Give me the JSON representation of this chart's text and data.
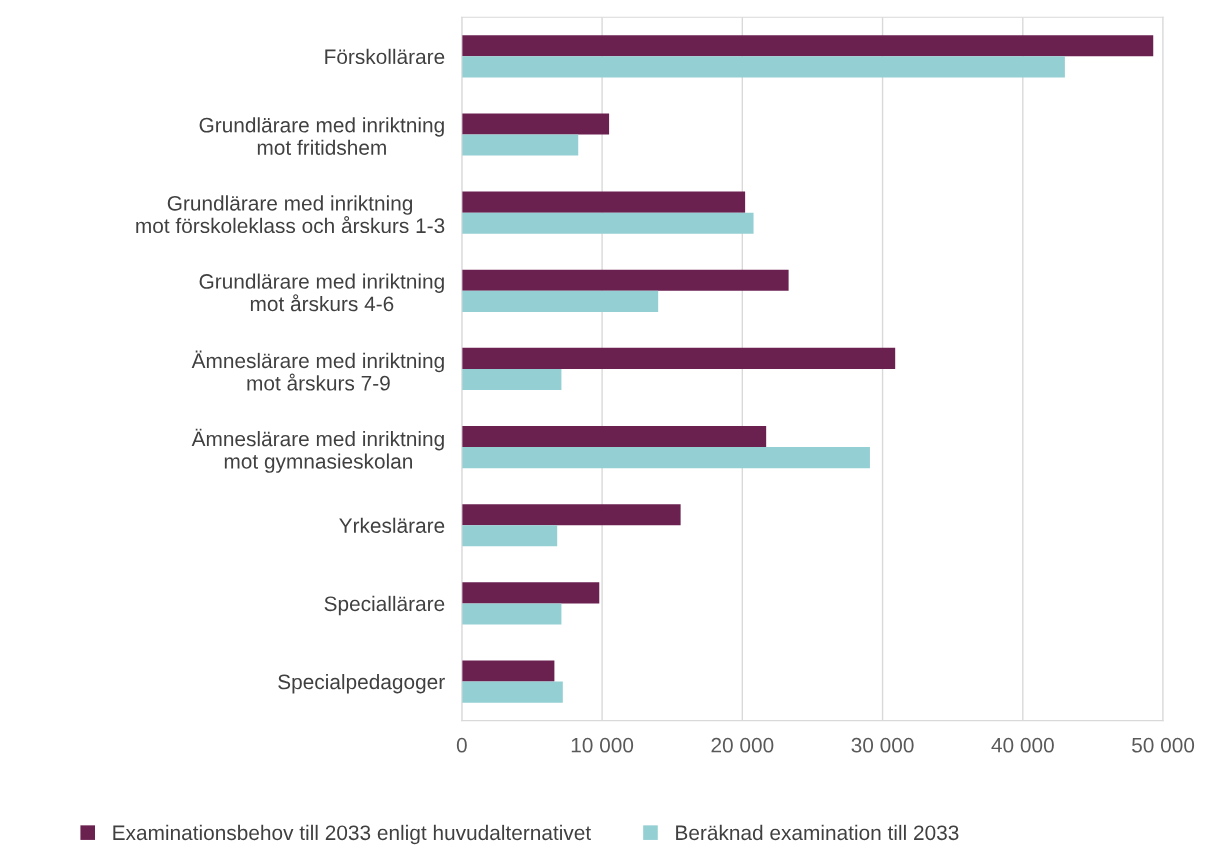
{
  "chart_data": {
    "type": "bar",
    "orientation": "horizontal",
    "categories": [
      "Förskollärare",
      "Grundlärare med inriktning\nmot fritidshem",
      "Grundlärare med inriktning\nmot förskoleklass och årskurs 1-3",
      "Grundlärare med inriktning\nmot årskurs 4-6",
      "Ämneslärare med inriktning\nmot årskurs 7-9",
      "Ämneslärare med inriktning\nmot gymnasieskolan",
      "Yrkeslärare",
      "Speciallärare",
      "Specialpedagoger"
    ],
    "series": [
      {
        "name": "Examinationsbehov till 2033 enligt huvudalternativet",
        "color": "#6b2150",
        "values": [
          49300,
          10500,
          20200,
          23300,
          30900,
          21700,
          15600,
          9800,
          6600
        ]
      },
      {
        "name": "Beräknad examination till 2033",
        "color": "#94cfd4",
        "values": [
          43000,
          8300,
          20800,
          14000,
          7100,
          29100,
          6800,
          7100,
          7200
        ]
      }
    ],
    "xlim": [
      0,
      50000
    ],
    "xticks": [
      0,
      {
        "value": 10000,
        "label": "10 000"
      },
      {
        "value": 20000,
        "label": "20 000"
      },
      {
        "value": 30000,
        "label": "30 000"
      },
      {
        "value": 40000,
        "label": "40 000"
      },
      {
        "value": 50000,
        "label": "50 000"
      }
    ],
    "grid": "x",
    "legend": "bottom"
  }
}
